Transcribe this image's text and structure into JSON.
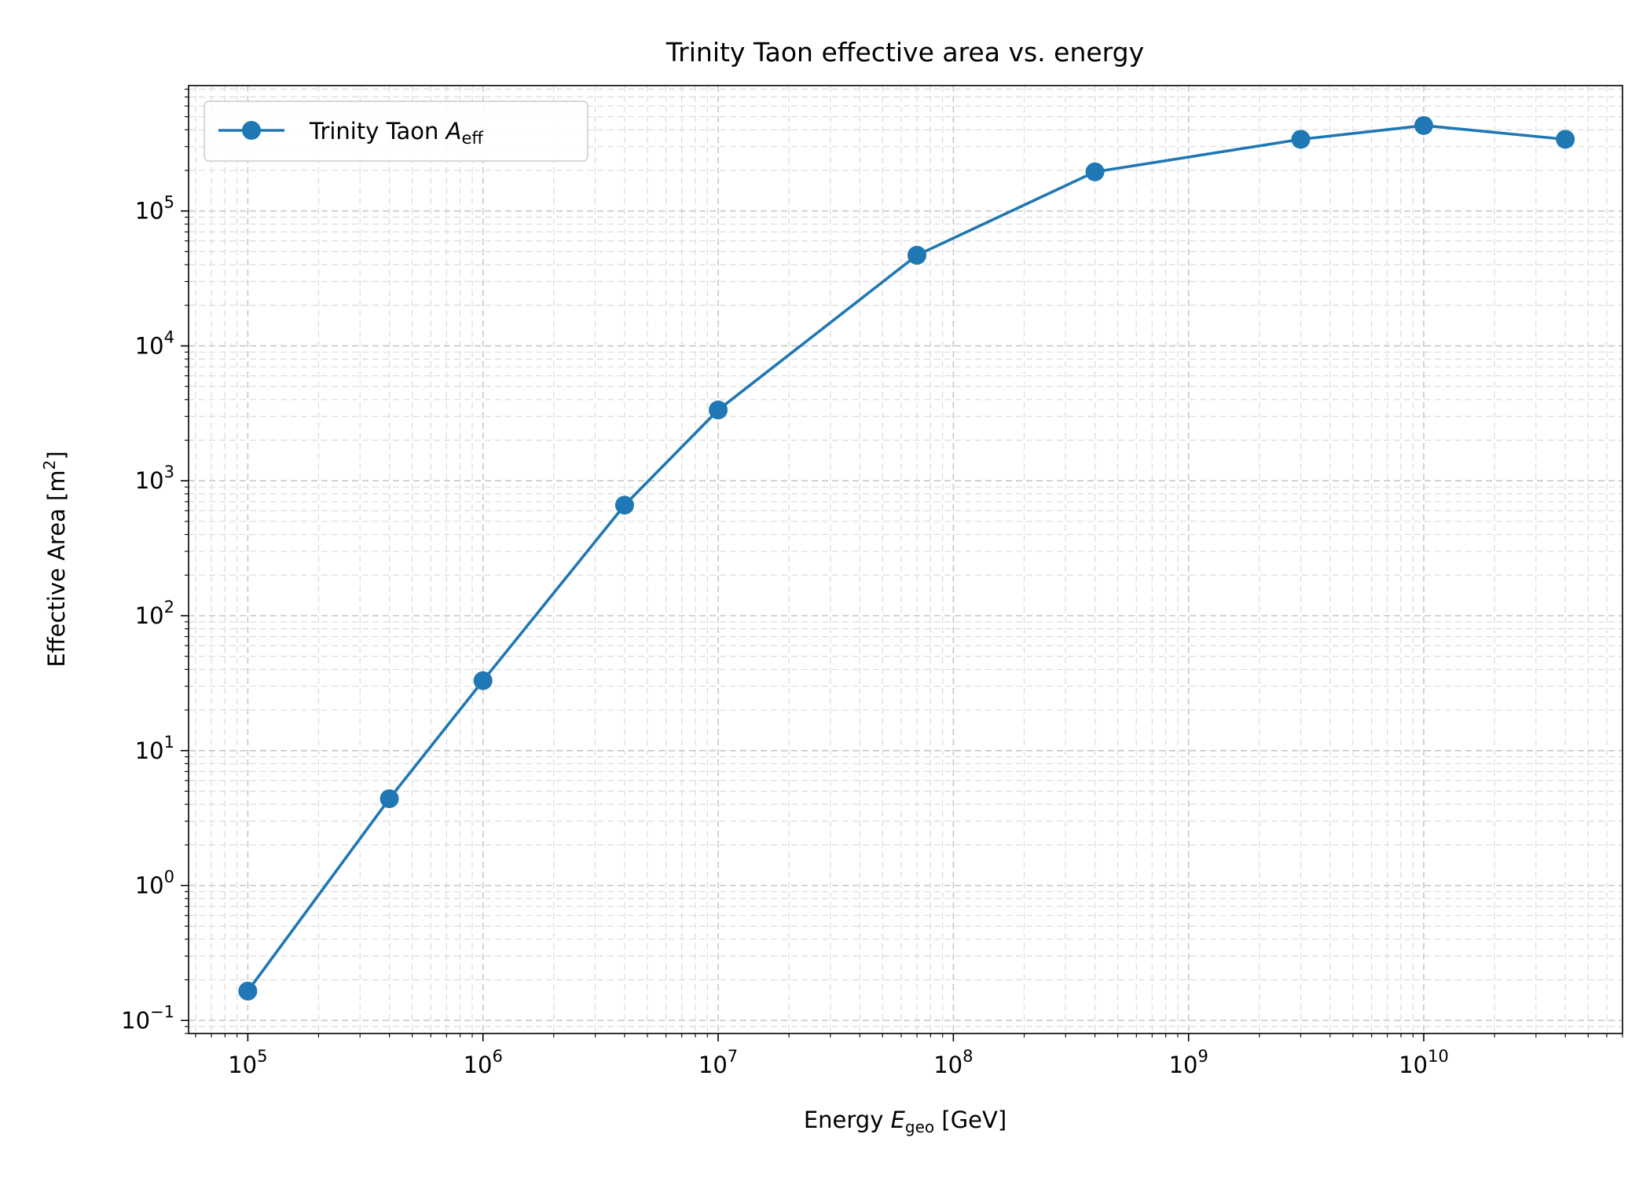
{
  "chart_data": {
    "type": "line",
    "title": "Trinity Taon effective area vs. energy",
    "xlabel": {
      "prefix": "Energy ",
      "var": "E",
      "sub": "geo",
      "suffix": " [GeV]"
    },
    "ylabel": {
      "text": "Effective Area [m",
      "sup": "2",
      "close": "]"
    },
    "x_scale": "log",
    "y_scale": "log",
    "xlim": [
      56000,
      70000000000
    ],
    "ylim": [
      0.08,
      850000
    ],
    "grid": true,
    "grid_style": "dashed, major and minor",
    "legend_position": "upper-left",
    "x_ticks": [
      {
        "value": 100000,
        "base": "10",
        "exp": "5"
      },
      {
        "value": 1000000,
        "base": "10",
        "exp": "6"
      },
      {
        "value": 10000000,
        "base": "10",
        "exp": "7"
      },
      {
        "value": 100000000,
        "base": "10",
        "exp": "8"
      },
      {
        "value": 1000000000,
        "base": "10",
        "exp": "9"
      },
      {
        "value": 10000000000,
        "base": "10",
        "exp": "10"
      }
    ],
    "y_ticks": [
      {
        "value": 0.1,
        "base": "10",
        "exp": "−1"
      },
      {
        "value": 1,
        "base": "10",
        "exp": "0"
      },
      {
        "value": 10,
        "base": "10",
        "exp": "1"
      },
      {
        "value": 100,
        "base": "10",
        "exp": "2"
      },
      {
        "value": 1000,
        "base": "10",
        "exp": "3"
      },
      {
        "value": 10000,
        "base": "10",
        "exp": "4"
      },
      {
        "value": 100000,
        "base": "10",
        "exp": "5"
      }
    ],
    "series": [
      {
        "name": {
          "text": "Trinity Taon ",
          "var": "A",
          "sub": "eff"
        },
        "color": "#1f77b4",
        "marker": "circle",
        "x": [
          100000,
          400000,
          1000000,
          4000000,
          10000000,
          70000000,
          400000000,
          3000000000,
          10000000000,
          40000000000
        ],
        "y": [
          0.165,
          4.4,
          33,
          660,
          3350,
          47000,
          195000,
          340000,
          430000,
          340000
        ]
      }
    ]
  }
}
